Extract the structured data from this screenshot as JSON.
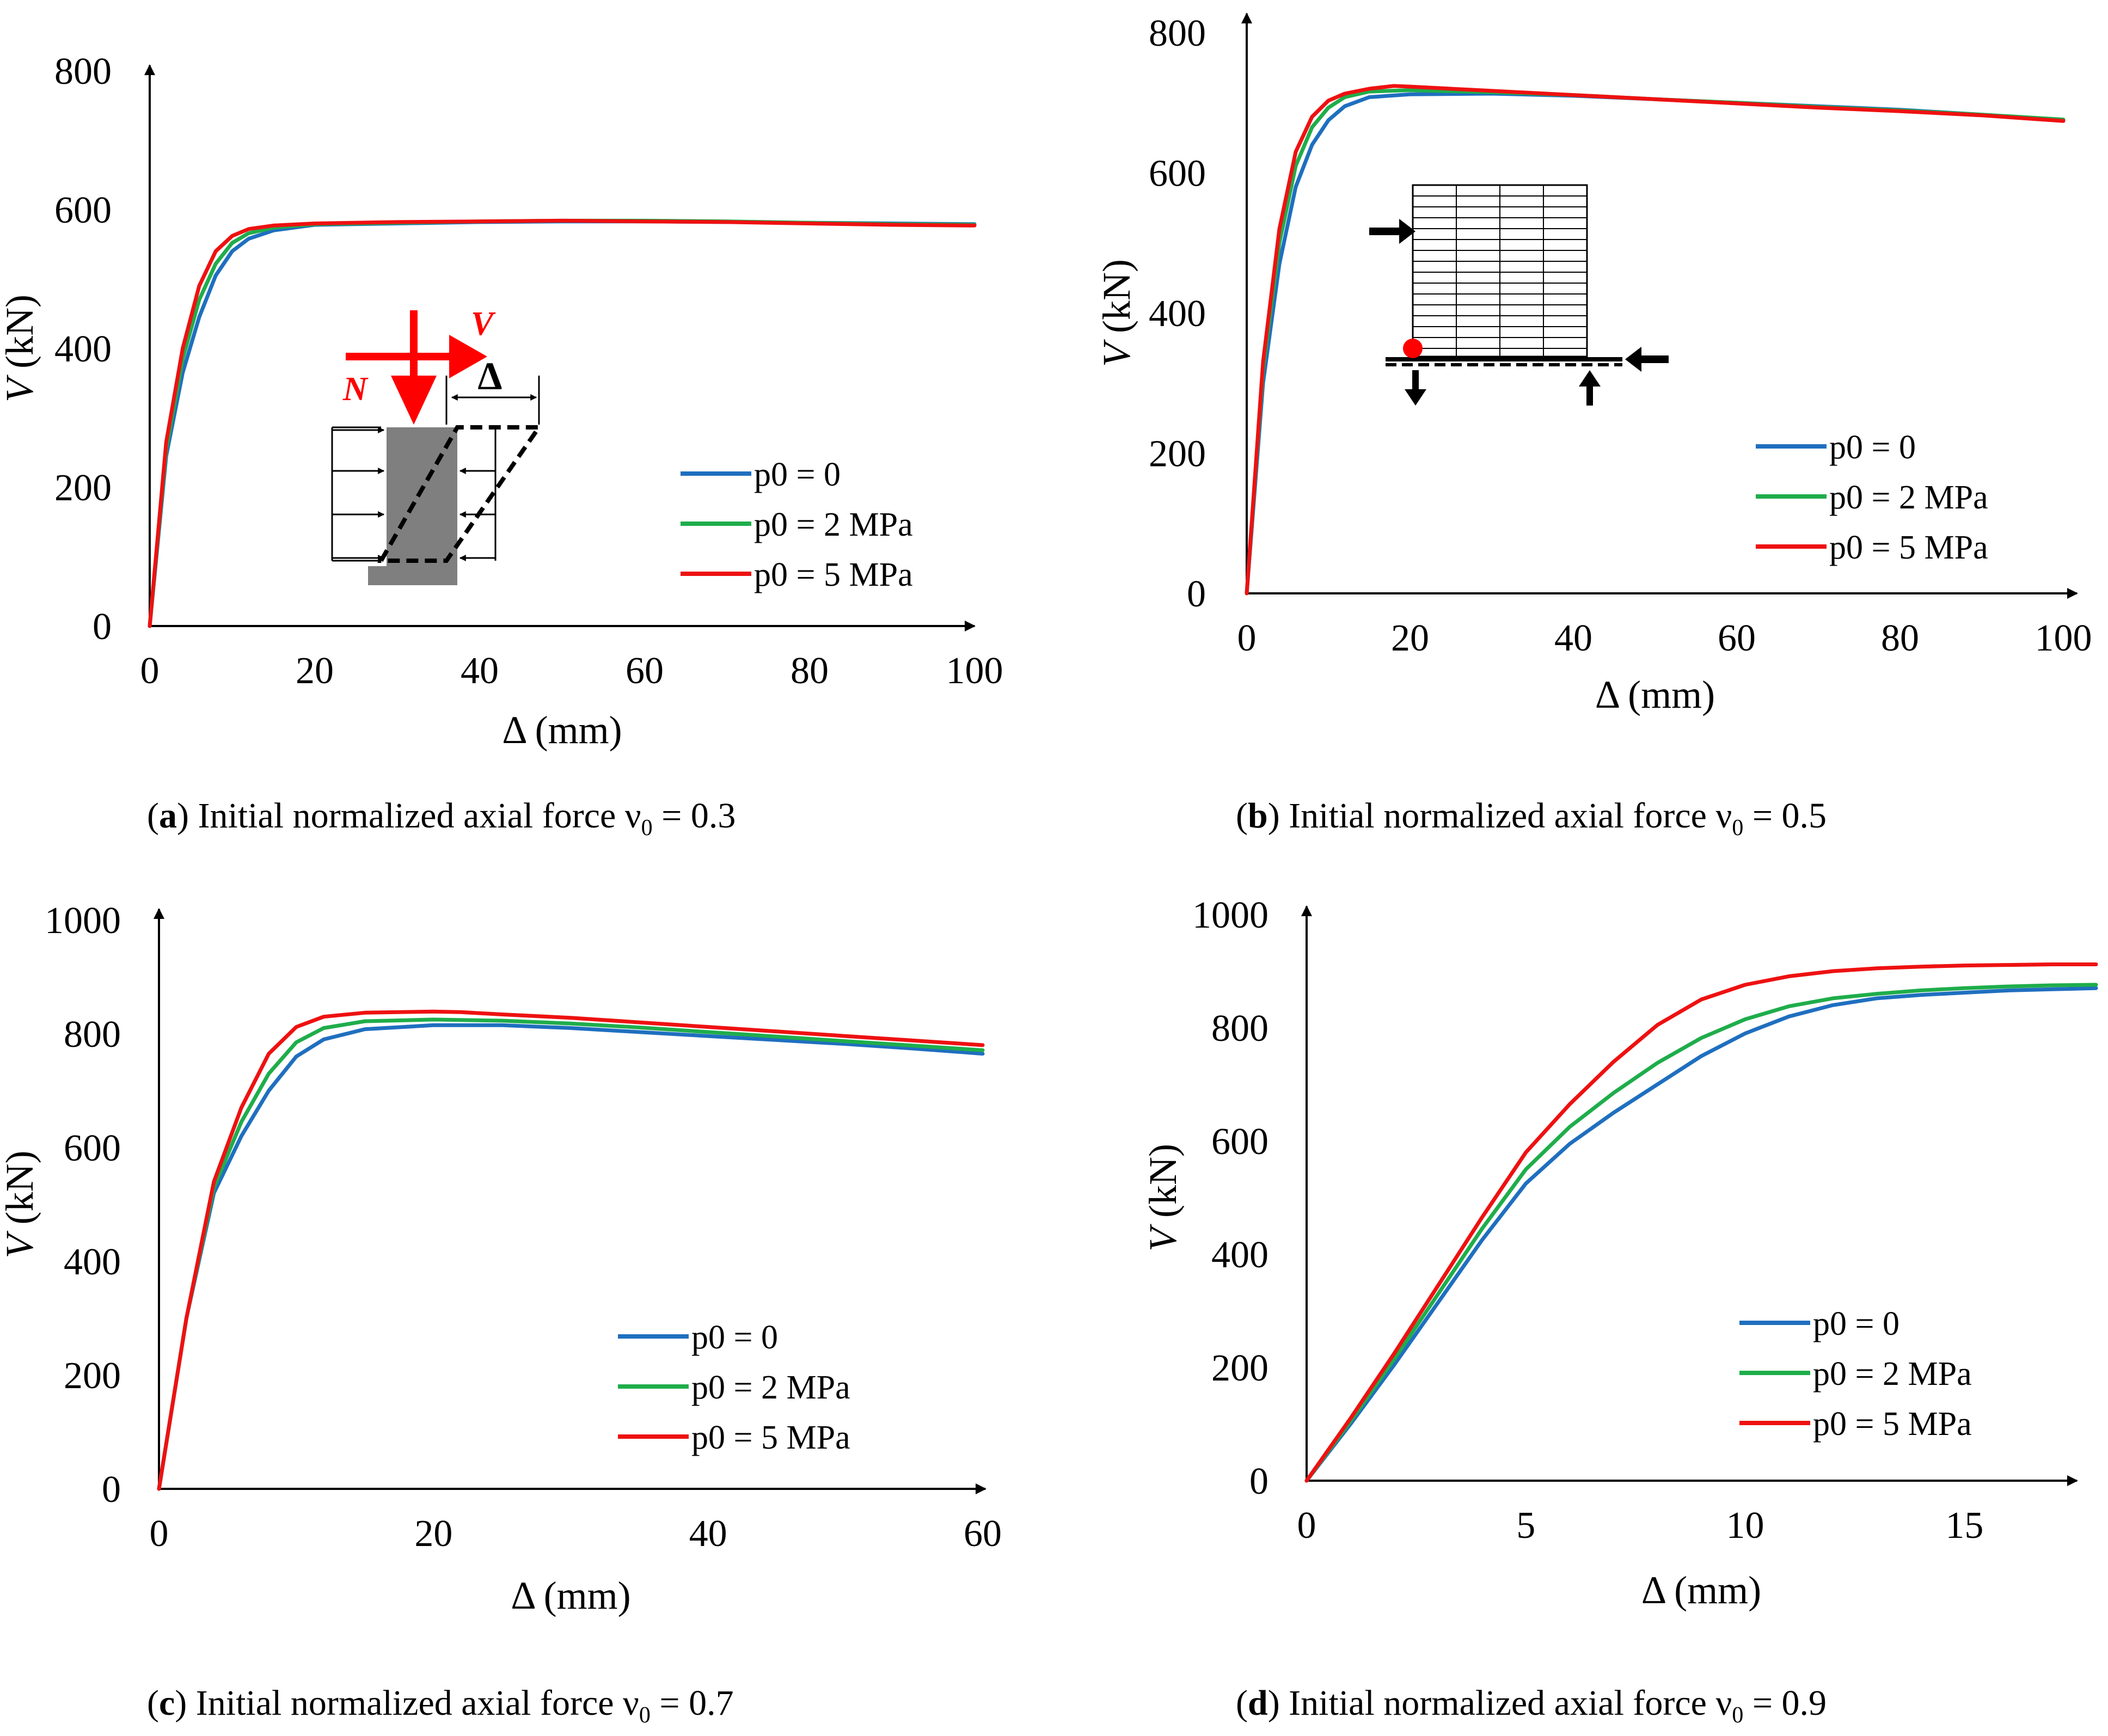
{
  "colors": {
    "p0_0": "#1f6fbf",
    "p0_2": "#1fad4b",
    "p0_5": "#ee1111",
    "inset_red": "#ff0000",
    "inset_gray": "#7f7f7f"
  },
  "chart_data": [
    {
      "type": "line",
      "panel": "a",
      "caption_letter": "a",
      "caption_text": "Initial normalized axial force ν",
      "caption_sub": "0",
      "caption_value": " = 0.3",
      "xlabel_sym": "Δ",
      "xlabel_unit": " (mm)",
      "ylabel_sym": "V",
      "ylabel_unit": " (kN)",
      "xlim": [
        0,
        100
      ],
      "ylim": [
        0,
        800
      ],
      "xticks": [
        0,
        20,
        40,
        60,
        80,
        100
      ],
      "yticks": [
        0,
        200,
        400,
        600,
        800
      ],
      "legend_position": "middle-right",
      "inset": {
        "type": "column-loading",
        "labels": {
          "N": "N",
          "V": "V",
          "delta": "Δ"
        }
      },
      "series": [
        {
          "name": "p0 = 0",
          "color_key": "p0_0",
          "x": [
            0,
            2,
            4,
            6,
            8,
            10,
            12,
            15,
            20,
            30,
            40,
            50,
            60,
            70,
            80,
            90,
            100
          ],
          "y": [
            0,
            245,
            365,
            445,
            505,
            540,
            558,
            570,
            578,
            580,
            582,
            583,
            583,
            582,
            581,
            580,
            579
          ]
        },
        {
          "name": "p0 = 2 MPa",
          "color_key": "p0_2",
          "x": [
            0,
            2,
            4,
            6,
            8,
            10,
            12,
            15,
            20,
            30,
            40,
            50,
            60,
            70,
            80,
            90,
            100
          ],
          "y": [
            0,
            255,
            385,
            470,
            522,
            552,
            566,
            574,
            579,
            581,
            583,
            584,
            584,
            583,
            581,
            579,
            578
          ]
        },
        {
          "name": "p0 = 5 MPa",
          "color_key": "p0_5",
          "x": [
            0,
            2,
            4,
            6,
            8,
            10,
            12,
            15,
            20,
            30,
            40,
            50,
            60,
            70,
            80,
            90,
            100
          ],
          "y": [
            0,
            265,
            400,
            490,
            540,
            562,
            572,
            577,
            580,
            582,
            583,
            584,
            583,
            582,
            580,
            578,
            577
          ]
        }
      ]
    },
    {
      "type": "line",
      "panel": "b",
      "caption_letter": "b",
      "caption_text": "Initial normalized axial force ν",
      "caption_sub": "0",
      "caption_value": " = 0.5",
      "xlabel_sym": "Δ",
      "xlabel_unit": " (mm)",
      "ylabel_sym": "V",
      "ylabel_unit": " (kN)",
      "xlim": [
        0,
        100
      ],
      "ylim": [
        0,
        800
      ],
      "xticks": [
        0,
        20,
        40,
        60,
        80,
        100
      ],
      "yticks": [
        0,
        200,
        400,
        600,
        800
      ],
      "legend_position": "lower-right",
      "inset": {
        "type": "mesh-section"
      },
      "series": [
        {
          "name": "p0 = 0",
          "color_key": "p0_0",
          "x": [
            0,
            2,
            4,
            6,
            8,
            10,
            12,
            15,
            20,
            30,
            40,
            50,
            60,
            70,
            80,
            90,
            100
          ],
          "y": [
            0,
            300,
            470,
            580,
            640,
            675,
            695,
            708,
            712,
            713,
            710,
            705,
            700,
            695,
            690,
            683,
            675
          ]
        },
        {
          "name": "p0 = 2 MPa",
          "color_key": "p0_2",
          "x": [
            0,
            2,
            4,
            6,
            8,
            10,
            12,
            15,
            20,
            30,
            40,
            50,
            60,
            70,
            80,
            90,
            100
          ],
          "y": [
            0,
            320,
            500,
            610,
            665,
            693,
            708,
            716,
            718,
            715,
            711,
            705,
            700,
            694,
            689,
            683,
            676
          ]
        },
        {
          "name": "p0 = 5 MPa",
          "color_key": "p0_5",
          "x": [
            0,
            2,
            4,
            6,
            8,
            10,
            12,
            15,
            18,
            20,
            30,
            40,
            50,
            60,
            70,
            80,
            90,
            100
          ],
          "y": [
            0,
            330,
            520,
            630,
            680,
            703,
            713,
            720,
            724,
            723,
            717,
            711,
            705,
            699,
            693,
            688,
            682,
            674
          ]
        }
      ]
    },
    {
      "type": "line",
      "panel": "c",
      "caption_letter": "c",
      "caption_text": "Initial normalized axial force ν",
      "caption_sub": "0",
      "caption_value": " = 0.7",
      "xlabel_sym": "Δ",
      "xlabel_unit": " (mm)",
      "ylabel_sym": "V",
      "ylabel_unit": " (kN)",
      "xlim": [
        0,
        60
      ],
      "ylim": [
        0,
        1000
      ],
      "xticks": [
        0,
        20,
        40,
        60
      ],
      "yticks": [
        0,
        200,
        400,
        600,
        800,
        1000
      ],
      "legend_position": "lower-right",
      "series": [
        {
          "name": "p0 = 0",
          "color_key": "p0_0",
          "x": [
            0,
            2,
            4,
            6,
            8,
            10,
            12,
            15,
            20,
            25,
            30,
            35,
            40,
            45,
            50,
            55,
            60
          ],
          "y": [
            0,
            300,
            520,
            620,
            700,
            760,
            790,
            808,
            815,
            815,
            810,
            803,
            796,
            789,
            782,
            774,
            765
          ]
        },
        {
          "name": "p0 = 2 MPa",
          "color_key": "p0_2",
          "x": [
            0,
            2,
            4,
            6,
            8,
            10,
            12,
            15,
            20,
            25,
            30,
            35,
            40,
            45,
            50,
            55,
            60
          ],
          "y": [
            0,
            300,
            530,
            645,
            730,
            785,
            810,
            822,
            825,
            823,
            818,
            811,
            803,
            795,
            787,
            779,
            771
          ]
        },
        {
          "name": "p0 = 5 MPa",
          "color_key": "p0_5",
          "x": [
            0,
            2,
            4,
            6,
            8,
            10,
            12,
            15,
            20,
            22,
            25,
            30,
            35,
            40,
            45,
            50,
            55,
            60
          ],
          "y": [
            0,
            300,
            540,
            670,
            765,
            812,
            830,
            837,
            839,
            838,
            834,
            828,
            820,
            812,
            804,
            796,
            788,
            780
          ]
        }
      ]
    },
    {
      "type": "line",
      "panel": "d",
      "caption_letter": "d",
      "caption_text": "Initial normalized axial force ν",
      "caption_sub": "0",
      "caption_value": " = 0.9",
      "xlabel_sym": "Δ",
      "xlabel_unit": " (mm)",
      "ylabel_sym": "V",
      "ylabel_unit": " (kN)",
      "xlim": [
        0,
        18
      ],
      "ylim": [
        0,
        1000
      ],
      "xticks": [
        0,
        5,
        10,
        15
      ],
      "yticks": [
        0,
        200,
        400,
        600,
        800,
        1000
      ],
      "legend_position": "lower-right",
      "series": [
        {
          "name": "p0 = 0",
          "color_key": "p0_0",
          "x": [
            0,
            1,
            2,
            3,
            4,
            5,
            6,
            7,
            8,
            9,
            10,
            11,
            12,
            13,
            14,
            15,
            16,
            17,
            18
          ],
          "y": [
            0,
            100,
            205,
            315,
            425,
            525,
            595,
            650,
            700,
            750,
            790,
            820,
            840,
            852,
            858,
            862,
            866,
            868,
            870
          ]
        },
        {
          "name": "p0 = 2 MPa",
          "color_key": "p0_2",
          "x": [
            0,
            1,
            2,
            3,
            4,
            5,
            6,
            7,
            8,
            9,
            10,
            11,
            12,
            13,
            14,
            15,
            16,
            17,
            18
          ],
          "y": [
            0,
            105,
            215,
            330,
            445,
            550,
            625,
            685,
            738,
            782,
            815,
            838,
            852,
            860,
            866,
            870,
            873,
            875,
            876
          ]
        },
        {
          "name": "p0 = 5 MPa",
          "color_key": "p0_5",
          "x": [
            0,
            1,
            2,
            3,
            4,
            5,
            6,
            7,
            8,
            9,
            10,
            11,
            12,
            13,
            14,
            15,
            16,
            17,
            18
          ],
          "y": [
            0,
            110,
            225,
            345,
            465,
            580,
            665,
            740,
            805,
            850,
            876,
            891,
            900,
            905,
            908,
            910,
            911,
            912,
            912
          ]
        }
      ]
    }
  ]
}
